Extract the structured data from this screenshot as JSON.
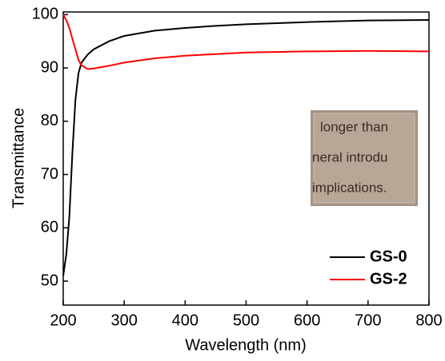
{
  "chart_data": {
    "type": "line",
    "x_label": "Wavelength (nm)",
    "y_label": "Transmittance",
    "x": [
      200,
      205,
      210,
      215,
      220,
      225,
      230,
      240,
      250,
      275,
      300,
      350,
      400,
      450,
      500,
      600,
      700,
      800
    ],
    "series": [
      {
        "name": "GS-0",
        "color": "#000000",
        "values": [
          51,
          55,
          62,
          74,
          84,
          89,
          91,
          92.5,
          93.5,
          95,
          96,
          97,
          97.5,
          97.9,
          98.2,
          98.6,
          98.9,
          99
        ]
      },
      {
        "name": "GS-2",
        "color": "#ff0000",
        "values": [
          100,
          99,
          97.5,
          95.5,
          93.5,
          91.5,
          90.5,
          89.8,
          89.9,
          90.4,
          91,
          91.8,
          92.3,
          92.6,
          92.9,
          93.1,
          93.2,
          93.1
        ]
      }
    ],
    "xlim": [
      200,
      800
    ],
    "xticks": [
      200,
      300,
      400,
      500,
      600,
      700,
      800
    ],
    "ylim": [
      45.5,
      100.5
    ],
    "yticks": [
      50,
      60,
      70,
      80,
      90,
      100
    ],
    "legend": "lower right",
    "inset_text": [
      "longer than",
      "neral introdu",
      "implications."
    ]
  }
}
